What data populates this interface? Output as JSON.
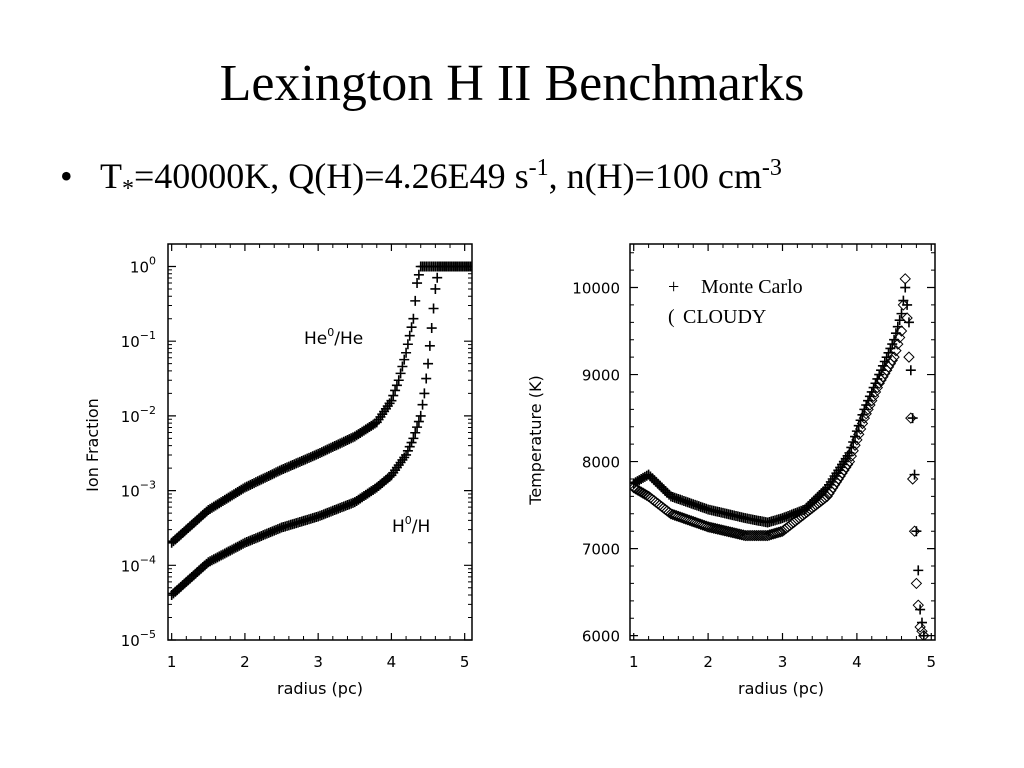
{
  "slide": {
    "title": "Lexington H II Benchmarks",
    "bullet": {
      "marker": "•",
      "text_a": "T",
      "sub_a": "*",
      "text_b": "=40000K, Q(H)=4.26E49 s",
      "sup_b": "-1",
      "text_c": ", n(H)=100 cm",
      "sup_c": "-3"
    }
  },
  "chart_data": [
    {
      "type": "scatter",
      "xlabel": "radius (pc)",
      "ylabel": "Ion Fraction",
      "xlim": [
        0.95,
        5.1
      ],
      "ylim": [
        1e-05,
        2
      ],
      "y_scale": "log",
      "xticks": [
        "1",
        "2",
        "3",
        "4",
        "5"
      ],
      "yticks": [
        {
          "base": "10",
          "exp": "0"
        },
        {
          "base": "10",
          "exp": "−1"
        },
        {
          "base": "10",
          "exp": "−2"
        },
        {
          "base": "10",
          "exp": "−3"
        },
        {
          "base": "10",
          "exp": "−4"
        },
        {
          "base": "10",
          "exp": "−5"
        }
      ],
      "annotations": [
        {
          "base": "He",
          "sup": "0",
          "rest": "/He"
        },
        {
          "base": "H",
          "sup": "0",
          "rest": "/H"
        }
      ],
      "series": [
        {
          "marker": "plus",
          "x": [
            1.0,
            1.5,
            2.0,
            2.5,
            3.0,
            3.5,
            3.8,
            4.0,
            4.1,
            4.2,
            4.3,
            4.35,
            4.4,
            5.1
          ],
          "values": [
            0.0002,
            0.00055,
            0.0011,
            0.0019,
            0.0031,
            0.0053,
            0.0082,
            0.016,
            0.03,
            0.07,
            0.2,
            0.6,
            1.0,
            1.0
          ]
        },
        {
          "marker": "plus",
          "x": [
            1.0,
            1.5,
            2.0,
            2.5,
            3.0,
            3.5,
            3.8,
            4.0,
            4.1,
            4.2,
            4.3,
            4.4,
            4.45,
            4.5,
            4.55,
            4.6,
            4.65,
            5.1
          ],
          "values": [
            4e-05,
            0.00011,
            0.0002,
            0.00032,
            0.00045,
            0.0007,
            0.0011,
            0.0016,
            0.0022,
            0.003,
            0.005,
            0.01,
            0.02,
            0.05,
            0.15,
            0.5,
            1.0,
            1.0
          ]
        }
      ]
    },
    {
      "type": "scatter",
      "xlabel": "radius (pc)",
      "ylabel": "Temperature (K)",
      "xlim": [
        0.95,
        5.05
      ],
      "ylim": [
        5950,
        10500
      ],
      "xticks": [
        "1",
        "2",
        "3",
        "4",
        "5"
      ],
      "yticks": [
        6000,
        7000,
        8000,
        9000,
        10000
      ],
      "legend": {
        "position": "top-right",
        "entries": [
          {
            "symbol": "+",
            "label": "Monte Carlo"
          },
          {
            "symbol": "(",
            "label": "CLOUDY"
          }
        ]
      },
      "series": [
        {
          "name": "Monte Carlo",
          "marker": "plus",
          "x": [
            1.0,
            1.2,
            1.5,
            2.0,
            2.5,
            2.8,
            3.0,
            3.3,
            3.6,
            3.9,
            4.1,
            4.3,
            4.5,
            4.6,
            4.65,
            4.7,
            4.75,
            4.8,
            4.85,
            4.9
          ],
          "values": [
            7750,
            7850,
            7600,
            7450,
            7350,
            7300,
            7350,
            7450,
            7700,
            8100,
            8600,
            9000,
            9400,
            9700,
            10000,
            9600,
            8500,
            7200,
            6300,
            6000
          ]
        },
        {
          "name": "CLOUDY",
          "marker": "diamond",
          "x": [
            1.0,
            1.2,
            1.5,
            2.0,
            2.5,
            2.8,
            3.0,
            3.3,
            3.6,
            3.9,
            4.1,
            4.3,
            4.5,
            4.6,
            4.65,
            4.7,
            4.75,
            4.8,
            4.85,
            4.9
          ],
          "values": [
            7700,
            7600,
            7400,
            7250,
            7150,
            7150,
            7200,
            7400,
            7600,
            8000,
            8500,
            8900,
            9200,
            9500,
            10100,
            9200,
            7800,
            6600,
            6100,
            6000
          ]
        }
      ]
    }
  ]
}
